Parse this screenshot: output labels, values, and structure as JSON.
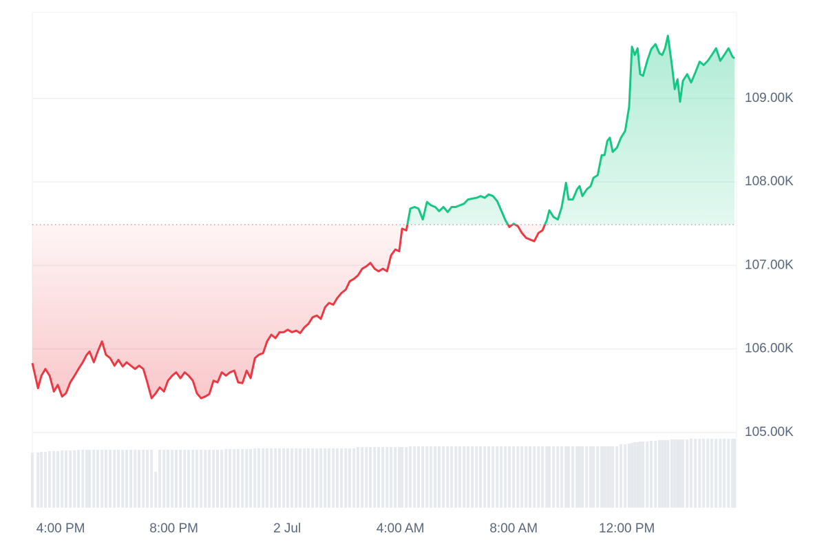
{
  "chart_data": {
    "type": "line",
    "x": [
      15.0,
      15.2,
      15.32,
      15.46,
      15.61,
      15.76,
      15.9,
      16.05,
      16.19,
      16.34,
      16.49,
      16.63,
      16.78,
      16.92,
      17.02,
      17.17,
      17.31,
      17.46,
      17.6,
      17.75,
      17.9,
      18.04,
      18.19,
      18.33,
      18.48,
      18.63,
      18.77,
      18.92,
      19.06,
      19.21,
      19.36,
      19.5,
      19.65,
      19.79,
      19.94,
      20.08,
      20.23,
      20.38,
      20.52,
      20.67,
      20.81,
      20.96,
      21.11,
      21.25,
      21.4,
      21.54,
      21.69,
      21.84,
      21.98,
      22.13,
      22.27,
      22.42,
      22.57,
      22.71,
      22.86,
      23.0,
      23.15,
      23.29,
      23.44,
      23.59,
      23.73,
      23.88,
      24.02,
      24.17,
      24.32,
      24.46,
      24.61,
      24.75,
      24.9,
      25.05,
      25.19,
      25.34,
      25.48,
      25.63,
      25.77,
      25.92,
      26.07,
      26.21,
      26.36,
      26.5,
      26.65,
      26.8,
      26.94,
      27.09,
      27.23,
      27.38,
      27.53,
      27.67,
      27.82,
      27.96,
      28.06,
      28.21,
      28.35,
      28.5,
      28.64,
      28.79,
      28.94,
      29.08,
      29.23,
      29.37,
      29.52,
      29.67,
      29.81,
      29.96,
      30.1,
      30.25,
      30.39,
      30.54,
      30.69,
      30.83,
      30.98,
      31.12,
      31.27,
      31.42,
      31.56,
      31.71,
      31.85,
      32.0,
      32.15,
      32.29,
      32.44,
      32.58,
      32.73,
      32.88,
      33.02,
      33.17,
      33.26,
      33.41,
      33.56,
      33.7,
      33.85,
      33.94,
      34.09,
      34.24,
      34.33,
      34.43,
      34.58,
      34.72,
      34.82,
      34.97,
      35.11,
      35.21,
      35.31,
      35.4,
      35.5,
      35.65,
      35.79,
      35.94,
      36.08,
      36.18,
      36.28,
      36.38,
      36.47,
      36.57,
      36.72,
      36.86,
      37.01,
      37.15,
      37.25,
      37.35,
      37.45,
      37.59,
      37.69,
      37.79,
      37.88,
      37.98,
      38.13,
      38.27,
      38.42,
      38.57,
      38.71,
      38.86,
      39.0,
      39.15,
      39.3,
      39.44,
      39.59,
      39.73,
      39.8
    ],
    "values": [
      105830,
      105530,
      105680,
      105760,
      105680,
      105490,
      105570,
      105430,
      105470,
      105600,
      105680,
      105760,
      105840,
      105930,
      105970,
      105840,
      105970,
      106090,
      105930,
      105890,
      105800,
      105870,
      105790,
      105840,
      105800,
      105760,
      105800,
      105760,
      105600,
      105410,
      105470,
      105540,
      105490,
      105620,
      105680,
      105720,
      105650,
      105720,
      105680,
      105620,
      105470,
      105410,
      105430,
      105460,
      105620,
      105600,
      105720,
      105680,
      105720,
      105740,
      105600,
      105590,
      105740,
      105650,
      105890,
      105930,
      105950,
      106090,
      106170,
      106130,
      106200,
      106200,
      106230,
      106200,
      106220,
      106190,
      106260,
      106300,
      106380,
      106400,
      106360,
      106500,
      106550,
      106530,
      106610,
      106670,
      106710,
      106810,
      106840,
      106880,
      106960,
      106990,
      107030,
      106960,
      106930,
      106960,
      106930,
      107120,
      107190,
      107170,
      107440,
      107420,
      107680,
      107700,
      107680,
      107550,
      107760,
      107720,
      107700,
      107650,
      107700,
      107640,
      107700,
      107700,
      107720,
      107740,
      107790,
      107800,
      107810,
      107830,
      107810,
      107850,
      107830,
      107770,
      107660,
      107540,
      107460,
      107500,
      107470,
      107390,
      107330,
      107310,
      107290,
      107390,
      107420,
      107540,
      107660,
      107580,
      107550,
      107700,
      107990,
      107790,
      107790,
      107910,
      107950,
      107830,
      107910,
      107950,
      108050,
      108080,
      108320,
      108320,
      108490,
      108530,
      108360,
      108410,
      108530,
      108610,
      108900,
      109620,
      109520,
      109600,
      109290,
      109270,
      109450,
      109590,
      109650,
      109540,
      109520,
      109600,
      109750,
      109400,
      109110,
      109230,
      108960,
      109210,
      109290,
      109190,
      109310,
      109440,
      109400,
      109450,
      109520,
      109600,
      109450,
      109520,
      109600,
      109500,
      109480
    ],
    "volume": [
      80,
      80,
      81,
      81,
      82,
      82,
      82,
      83,
      83,
      83,
      83,
      84,
      84,
      84,
      84,
      84,
      84,
      84,
      84,
      84,
      84,
      84,
      84,
      84,
      84,
      84,
      84,
      84,
      84,
      84,
      52,
      84,
      84,
      84,
      84,
      84,
      84,
      84,
      84,
      84,
      84,
      84,
      84,
      84,
      84,
      84,
      84,
      85,
      85,
      85,
      85,
      85,
      85,
      85,
      86,
      86,
      86,
      86,
      86,
      86,
      86,
      86,
      86,
      86,
      86,
      86,
      86,
      86,
      86,
      86,
      86,
      86,
      86,
      86,
      86,
      86,
      86,
      86,
      86,
      88,
      88,
      88,
      88,
      88,
      88,
      88,
      88,
      88,
      88,
      88,
      88,
      88,
      89,
      89,
      89,
      89,
      89,
      89,
      89,
      89,
      89,
      89,
      89,
      89,
      89,
      89,
      89,
      89,
      89,
      89,
      89,
      89,
      89,
      89,
      89,
      89,
      89,
      89,
      89,
      89,
      89,
      89,
      89,
      89,
      89,
      89,
      89,
      89,
      89,
      89,
      89,
      89,
      89,
      89,
      89,
      89,
      89,
      89,
      89,
      89,
      89,
      89,
      89,
      89,
      89,
      89,
      92,
      92,
      93,
      94,
      95,
      95,
      96,
      96,
      96,
      97,
      97,
      98,
      98,
      98,
      98,
      99,
      99,
      99,
      99,
      99,
      99,
      100,
      100,
      100,
      100,
      100,
      100,
      100,
      100,
      100,
      100,
      100,
      100
    ],
    "baseline": 107488,
    "colors": {
      "up": "#16c784",
      "down": "#ea3943",
      "volume": "#e6e9ee"
    },
    "xlim": [
      15,
      39.8
    ],
    "xticks": [
      {
        "value": 16,
        "label": "4:00 PM"
      },
      {
        "value": 20,
        "label": "8:00 PM"
      },
      {
        "value": 24,
        "label": "2 Jul"
      },
      {
        "value": 28,
        "label": "4:00 AM"
      },
      {
        "value": 32,
        "label": "8:00 AM"
      },
      {
        "value": 36,
        "label": "12:00 PM"
      }
    ],
    "ylim": [
      104100,
      110030
    ],
    "yticks": [
      {
        "value": 105000,
        "label": "105.00K"
      },
      {
        "value": 106000,
        "label": "106.00K"
      },
      {
        "value": 107000,
        "label": "107.00K"
      },
      {
        "value": 108000,
        "label": "108.00K"
      },
      {
        "value": 109000,
        "label": "109.00K"
      }
    ],
    "grid": true
  }
}
